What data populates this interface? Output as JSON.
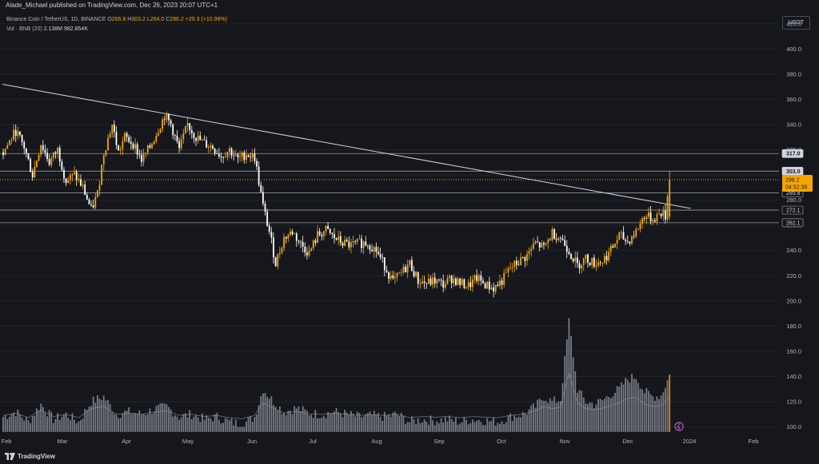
{
  "header": {
    "text": "Alade_Michael published on TradingView.com, Dec 26, 2023 20:07 UTC+1"
  },
  "legend": {
    "symbol": "Binance Coin / TetherUS, 1D, BINANCE",
    "open_label": "O",
    "open": "266.8",
    "high_label": "H",
    "high": "303.2",
    "low_label": "L",
    "low": "264.0",
    "close_label": "C",
    "close": "296.2",
    "change": "+29.3 (+10.98%)",
    "volume_label": "Vol · BNB (20)",
    "volume": "2.138M",
    "volume_ma": "982.854K"
  },
  "currency_button": "USDT",
  "price_axis": {
    "ticks": [
      "420.0",
      "400.0",
      "380.0",
      "360.0",
      "340.0",
      "320.0",
      "300.0",
      "280.0",
      "260.0",
      "240.0",
      "220.0",
      "200.0",
      "180.0",
      "160.0",
      "140.0",
      "120.0",
      "100.0"
    ],
    "labels": [
      {
        "text": "317.0",
        "price": 317.0,
        "style": "light"
      },
      {
        "text": "303.0",
        "price": 303.0,
        "style": "light"
      },
      {
        "text": "285.8",
        "price": 285.8,
        "style": "dark"
      },
      {
        "text": "272.1",
        "price": 272.1,
        "style": "dark"
      },
      {
        "text": "262.1",
        "price": 262.1,
        "style": "dark"
      }
    ],
    "current_price": "296.2",
    "countdown": "04:52:39"
  },
  "time_axis": {
    "labels": [
      "Feb",
      "Mar",
      "Apr",
      "May",
      "Jun",
      "Jul",
      "Aug",
      "Sep",
      "Oct",
      "Nov",
      "Dec",
      "2024",
      "Feb"
    ]
  },
  "colors": {
    "background": "#16171c",
    "up": "#f7a600",
    "down": "#ffffff",
    "price_line": "#f7a600",
    "level_line": "#9598a1",
    "volume": "#8a8d96"
  },
  "chart_data": {
    "type": "candlestick",
    "symbol": "BNBUSDT",
    "interval": "1D",
    "ylim": [
      94,
      430
    ],
    "x": [
      "2023-02",
      "2023-03",
      "2023-04",
      "2023-05",
      "2023-06",
      "2023-07",
      "2023-08",
      "2023-09",
      "2023-10",
      "2023-11",
      "2023-12",
      "2024-01",
      "2024-02"
    ],
    "price_series": [
      [
        0,
        318
      ],
      [
        6,
        335
      ],
      [
        10,
        322
      ],
      [
        14,
        300
      ],
      [
        18,
        325
      ],
      [
        22,
        310
      ],
      [
        26,
        320
      ],
      [
        30,
        295
      ],
      [
        34,
        300
      ],
      [
        38,
        290
      ],
      [
        42,
        272
      ],
      [
        45,
        285
      ],
      [
        48,
        318
      ],
      [
        52,
        340
      ],
      [
        55,
        318
      ],
      [
        58,
        330
      ],
      [
        62,
        325
      ],
      [
        66,
        312
      ],
      [
        70,
        322
      ],
      [
        73,
        333
      ],
      [
        77,
        347
      ],
      [
        80,
        340
      ],
      [
        84,
        320
      ],
      [
        88,
        340
      ],
      [
        92,
        330
      ],
      [
        96,
        325
      ],
      [
        100,
        322
      ],
      [
        104,
        315
      ],
      [
        108,
        320
      ],
      [
        112,
        312
      ],
      [
        116,
        317
      ],
      [
        120,
        314
      ],
      [
        124,
        275
      ],
      [
        127,
        255
      ],
      [
        130,
        230
      ],
      [
        134,
        250
      ],
      [
        138,
        255
      ],
      [
        142,
        245
      ],
      [
        146,
        238
      ],
      [
        150,
        252
      ],
      [
        154,
        256
      ],
      [
        158,
        250
      ],
      [
        162,
        246
      ],
      [
        166,
        244
      ],
      [
        170,
        246
      ],
      [
        174,
        246
      ],
      [
        178,
        240
      ],
      [
        182,
        228
      ],
      [
        186,
        215
      ],
      [
        190,
        222
      ],
      [
        194,
        230
      ],
      [
        198,
        216
      ],
      [
        202,
        214
      ],
      [
        206,
        216
      ],
      [
        210,
        213
      ],
      [
        214,
        218
      ],
      [
        218,
        214
      ],
      [
        222,
        212
      ],
      [
        226,
        218
      ],
      [
        230,
        213
      ],
      [
        234,
        210
      ],
      [
        238,
        216
      ],
      [
        242,
        226
      ],
      [
        246,
        231
      ],
      [
        250,
        236
      ],
      [
        254,
        246
      ],
      [
        258,
        242
      ],
      [
        262,
        254
      ],
      [
        266,
        250
      ],
      [
        270,
        240
      ],
      [
        274,
        228
      ],
      [
        278,
        234
      ],
      [
        282,
        230
      ],
      [
        286,
        232
      ],
      [
        290,
        240
      ],
      [
        294,
        252
      ],
      [
        298,
        247
      ],
      [
        302,
        255
      ],
      [
        306,
        268
      ],
      [
        310,
        265
      ],
      [
        314,
        270
      ],
      [
        316,
        267
      ],
      [
        318,
        300
      ]
    ],
    "volume_series": [
      [
        0,
        108
      ],
      [
        6,
        112
      ],
      [
        12,
        104
      ],
      [
        18,
        118
      ],
      [
        24,
        106
      ],
      [
        30,
        110
      ],
      [
        36,
        104
      ],
      [
        42,
        120
      ],
      [
        48,
        124
      ],
      [
        54,
        110
      ],
      [
        60,
        112
      ],
      [
        66,
        110
      ],
      [
        72,
        114
      ],
      [
        78,
        116
      ],
      [
        84,
        108
      ],
      [
        90,
        110
      ],
      [
        96,
        106
      ],
      [
        102,
        108
      ],
      [
        108,
        104
      ],
      [
        114,
        102
      ],
      [
        120,
        108
      ],
      [
        124,
        130
      ],
      [
        128,
        122
      ],
      [
        134,
        112
      ],
      [
        140,
        115
      ],
      [
        146,
        111
      ],
      [
        152,
        110
      ],
      [
        158,
        112
      ],
      [
        164,
        110
      ],
      [
        170,
        108
      ],
      [
        176,
        109
      ],
      [
        182,
        108
      ],
      [
        188,
        110
      ],
      [
        194,
        104
      ],
      [
        200,
        106
      ],
      [
        206,
        105
      ],
      [
        212,
        106
      ],
      [
        218,
        104
      ],
      [
        224,
        106
      ],
      [
        230,
        105
      ],
      [
        236,
        104
      ],
      [
        242,
        108
      ],
      [
        248,
        110
      ],
      [
        254,
        116
      ],
      [
        258,
        124
      ],
      [
        262,
        120
      ],
      [
        266,
        122
      ],
      [
        270,
        184
      ],
      [
        274,
        130
      ],
      [
        278,
        120
      ],
      [
        282,
        118
      ],
      [
        286,
        121
      ],
      [
        290,
        126
      ],
      [
        294,
        130
      ],
      [
        298,
        138
      ],
      [
        302,
        140
      ],
      [
        306,
        128
      ],
      [
        310,
        124
      ],
      [
        314,
        125
      ],
      [
        318,
        141
      ]
    ],
    "trendline": {
      "x1": 0,
      "y1": 372,
      "x2": 324,
      "y2": 274
    },
    "horizontal_levels": [
      317.0,
      303.0,
      285.8,
      272.1,
      262.1
    ],
    "last_price": 296.2
  }
}
